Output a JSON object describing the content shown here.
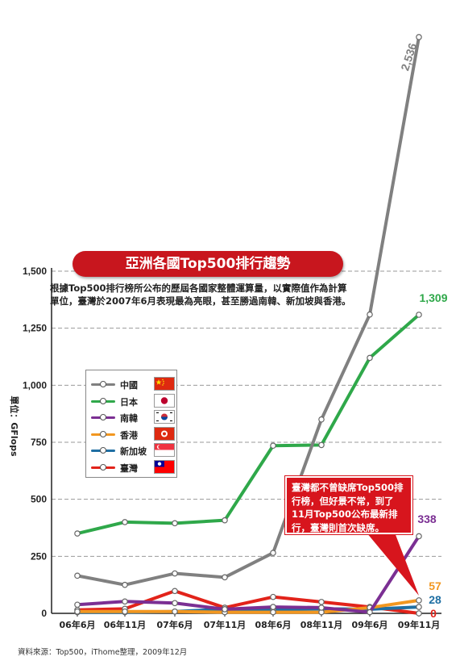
{
  "chart_data": {
    "type": "line",
    "title": "亞洲各國Top500排行趨勢",
    "subtitle": "根據Top500排行榜所公布的歷屆各國家整體運算量，以實際值作為計算單位，臺灣於2007年6月表現最為亮眼，甚至勝過南韓、新加坡與香港。",
    "ylabel": "單位：GFlops",
    "ylim": [
      0,
      1500
    ],
    "yticks": [
      "0",
      "250",
      "500",
      "750",
      "1,000",
      "1,250",
      "1,500"
    ],
    "categories": [
      "06年6月",
      "06年11月",
      "07年6月",
      "07年11月",
      "08年6月",
      "08年11月",
      "09年6月",
      "09年11月"
    ],
    "grid": true,
    "series": [
      {
        "name": "中國",
        "color": "#808080",
        "values": [
          165,
          125,
          175,
          158,
          265,
          850,
          1310,
          2536
        ],
        "end_label": "2,536"
      },
      {
        "name": "日本",
        "color": "#2fa84a",
        "values": [
          350,
          400,
          395,
          408,
          735,
          738,
          1120,
          1309
        ],
        "end_label": "1,309"
      },
      {
        "name": "南韓",
        "color": "#7b2f93",
        "values": [
          38,
          52,
          45,
          18,
          28,
          25,
          5,
          338
        ],
        "end_label": "338"
      },
      {
        "name": "香港",
        "color": "#f29720",
        "values": [
          8,
          8,
          8,
          5,
          5,
          5,
          25,
          57
        ],
        "end_label": "57"
      },
      {
        "name": "新加坡",
        "color": "#1f6fa3",
        "values": [
          5,
          5,
          8,
          18,
          15,
          20,
          18,
          28
        ],
        "end_label": "28"
      },
      {
        "name": "臺灣",
        "color": "#e2231a",
        "values": [
          15,
          20,
          98,
          25,
          72,
          50,
          28,
          0
        ],
        "end_label": "0"
      }
    ]
  },
  "legend": {
    "items": [
      {
        "label": "中國",
        "color": "#808080",
        "flag": "china-flag-icon"
      },
      {
        "label": "日本",
        "color": "#2fa84a",
        "flag": "japan-flag-icon"
      },
      {
        "label": "南韓",
        "color": "#7b2f93",
        "flag": "korea-flag-icon"
      },
      {
        "label": "香港",
        "color": "#f29720",
        "flag": "hongkong-flag-icon"
      },
      {
        "label": "新加坡",
        "color": "#1f6fa3",
        "flag": "singapore-flag-icon"
      },
      {
        "label": "臺灣",
        "color": "#e2231a",
        "flag": "taiwan-flag-icon"
      }
    ]
  },
  "callout": {
    "text": "臺灣都不曾缺席Top500排行榜，但好景不常，到了11月Top500公布最新排行，臺灣則首次缺席。"
  },
  "source": "資料來源：Top500，iThome整理，2009年12月"
}
